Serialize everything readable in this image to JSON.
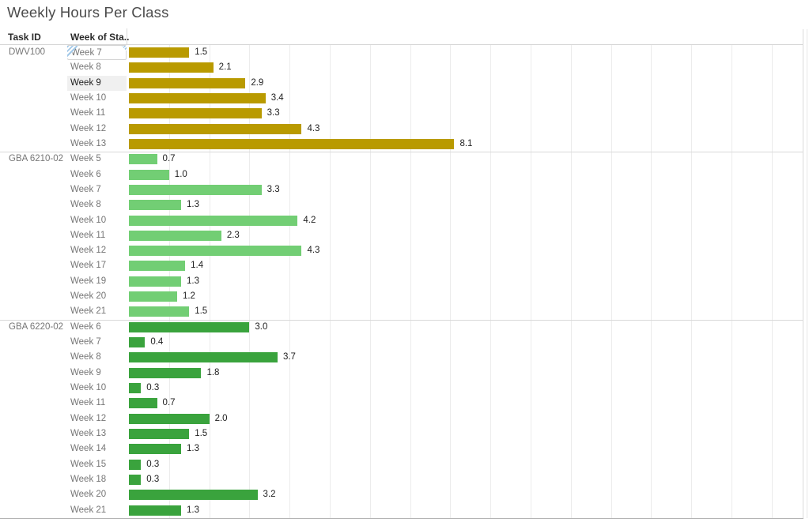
{
  "title": "Weekly Hours Per Class",
  "row_headers": {
    "task_id": "Task ID",
    "week_of_start": "Week of Sta.."
  },
  "selection": {
    "highlighted": {
      "group": "DWV100",
      "week": "Week 9"
    },
    "hovered": {
      "group": "DWV100",
      "week": "Week 7"
    }
  },
  "colors": {
    "dwv100_bar": "#b99a00",
    "gba6210_bar": "#72ce74",
    "gba6220_bar": "#3aa33d",
    "hover_icon_blue": "#a3c9e8",
    "highlight_row_bg": "#f0f0f0",
    "gridline": "#ececec",
    "separator": "#d9d9d9",
    "axis_bottom_line": "#b3b3b3"
  },
  "axis": {
    "unit": "hours",
    "gridline_interval": 1,
    "x_min": 0,
    "x_max": 16.8,
    "gridlines_shown": 16
  },
  "chart_data": {
    "type": "bar",
    "orientation": "horizontal",
    "title": "Weekly Hours Per Class",
    "value_label_format": "one_decimal",
    "row_headers": [
      "Task ID",
      "Week of Sta.."
    ],
    "groups": [
      {
        "task_id": "DWV100",
        "color": "#b99a00",
        "rows": [
          {
            "week": "Week 7",
            "hours": 1.5
          },
          {
            "week": "Week 8",
            "hours": 2.1
          },
          {
            "week": "Week 9",
            "hours": 2.9
          },
          {
            "week": "Week 10",
            "hours": 3.4
          },
          {
            "week": "Week 11",
            "hours": 3.3
          },
          {
            "week": "Week 12",
            "hours": 4.3
          },
          {
            "week": "Week 13",
            "hours": 8.1
          }
        ]
      },
      {
        "task_id": "GBA 6210-02",
        "color": "#72ce74",
        "rows": [
          {
            "week": "Week 5",
            "hours": 0.7
          },
          {
            "week": "Week 6",
            "hours": 1.0
          },
          {
            "week": "Week 7",
            "hours": 3.3
          },
          {
            "week": "Week 8",
            "hours": 1.3
          },
          {
            "week": "Week 10",
            "hours": 4.2
          },
          {
            "week": "Week 11",
            "hours": 2.3
          },
          {
            "week": "Week 12",
            "hours": 4.3
          },
          {
            "week": "Week 17",
            "hours": 1.4
          },
          {
            "week": "Week 19",
            "hours": 1.3
          },
          {
            "week": "Week 20",
            "hours": 1.2
          },
          {
            "week": "Week 21",
            "hours": 1.5
          }
        ]
      },
      {
        "task_id": "GBA 6220-02",
        "color": "#3aa33d",
        "rows": [
          {
            "week": "Week 6",
            "hours": 3.0
          },
          {
            "week": "Week 7",
            "hours": 0.4
          },
          {
            "week": "Week 8",
            "hours": 3.7
          },
          {
            "week": "Week 9",
            "hours": 1.8
          },
          {
            "week": "Week 10",
            "hours": 0.3
          },
          {
            "week": "Week 11",
            "hours": 0.7
          },
          {
            "week": "Week 12",
            "hours": 2.0
          },
          {
            "week": "Week 13",
            "hours": 1.5
          },
          {
            "week": "Week 14",
            "hours": 1.3
          },
          {
            "week": "Week 15",
            "hours": 0.3
          },
          {
            "week": "Week 18",
            "hours": 0.3
          },
          {
            "week": "Week 20",
            "hours": 3.2
          },
          {
            "week": "Week 21",
            "hours": 1.3
          }
        ]
      }
    ]
  }
}
